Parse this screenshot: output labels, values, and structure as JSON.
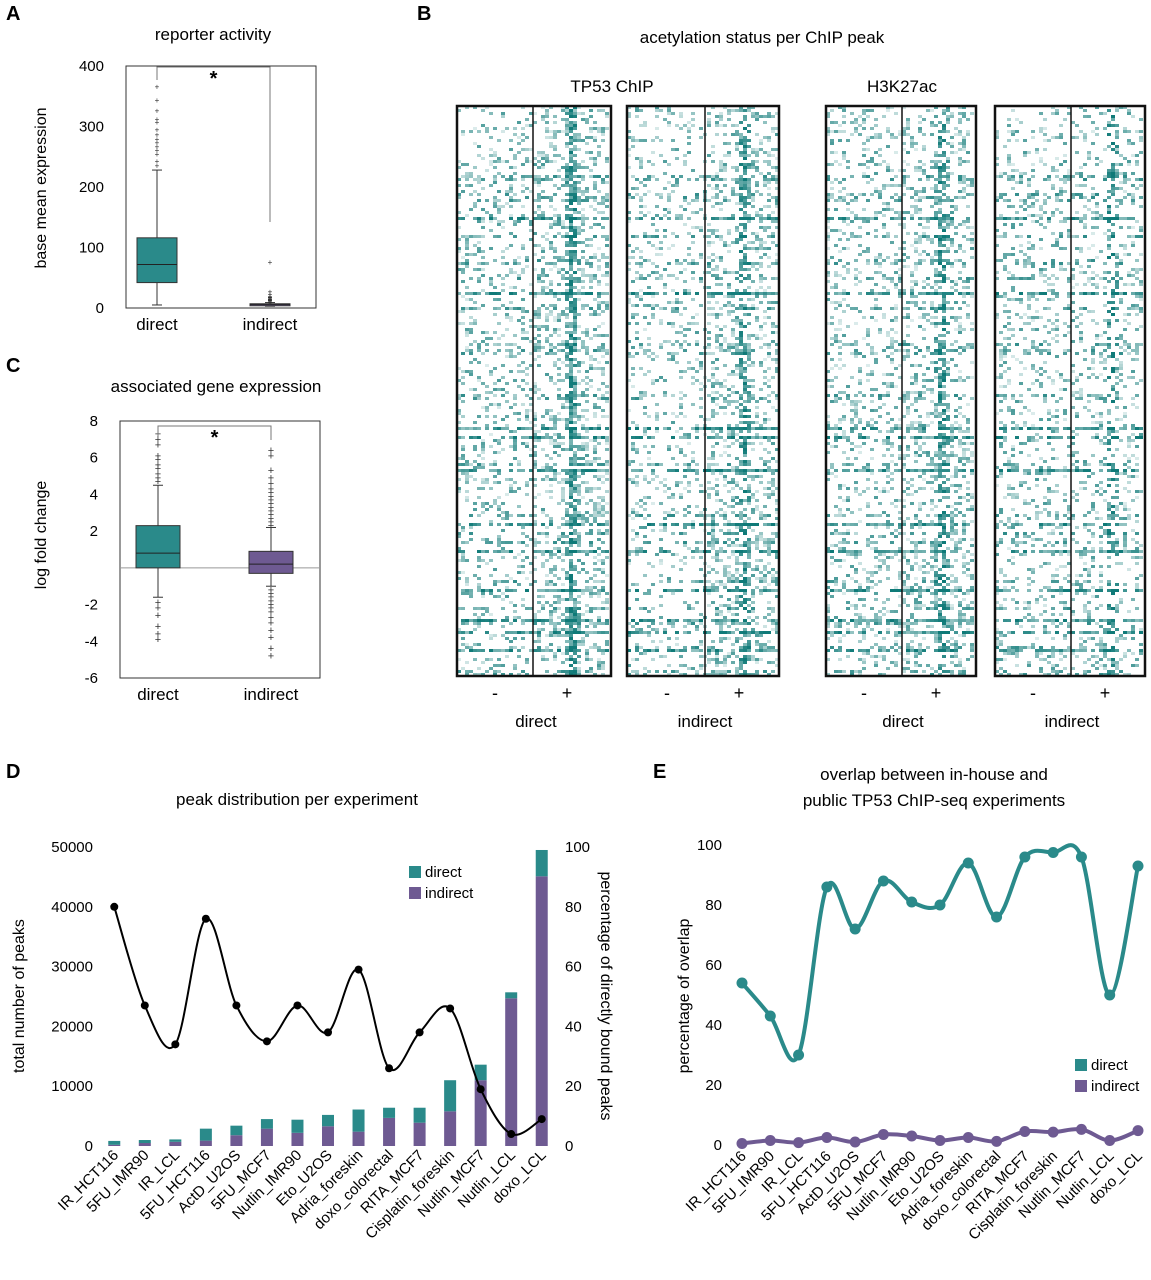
{
  "colors": {
    "direct": "#2a8a8a",
    "indirect": "#6e5a92",
    "heat": "#0f7a78",
    "line": "#000000"
  },
  "panels": {
    "A": {
      "letter": "A",
      "title": "reporter activity",
      "ylabel": "base mean expression",
      "star": "*"
    },
    "B": {
      "letter": "B",
      "title": "acetylation status per ChIP peak",
      "group_tp53": "TP53 ChIP",
      "group_h3k27ac": "H3K27ac",
      "minus": "-",
      "plus": "+",
      "sublabels": [
        "direct",
        "indirect",
        "direct",
        "indirect"
      ]
    },
    "C": {
      "letter": "C",
      "title": "associated gene expression",
      "ylabel": "log fold change",
      "star": "*"
    },
    "D": {
      "letter": "D",
      "title": "peak distribution per experiment",
      "ylabel_left": "total number of peaks",
      "ylabel_right": "percentage of directly bound peaks"
    },
    "E": {
      "letter": "E",
      "title_line1": "overlap between in-house and",
      "title_line2": "public TP53 ChIP-seq experiments",
      "ylabel": "percentage of overlap"
    }
  },
  "chart_data": [
    {
      "panel": "A",
      "type": "box",
      "title": "reporter activity",
      "ylabel": "base mean expression",
      "ylim": [
        0,
        400
      ],
      "yticks": [
        0,
        100,
        200,
        300,
        400
      ],
      "categories": [
        "direct",
        "indirect"
      ],
      "boxes": [
        {
          "name": "direct",
          "whisker_low": 5,
          "q1": 42,
          "median": 72,
          "q3": 116,
          "whisker_high": 228,
          "outliers": [
            236,
            244,
            255,
            262,
            268,
            274,
            280,
            288,
            296,
            308,
            313,
            327,
            345,
            367
          ]
        },
        {
          "name": "indirect",
          "whisker_low": 3,
          "q1": 5,
          "median": 6,
          "q3": 7,
          "whisker_high": 9,
          "outliers": [
            10,
            11,
            12,
            13,
            14,
            15,
            16,
            17,
            18,
            19,
            21,
            24,
            28,
            77
          ]
        }
      ]
    },
    {
      "panel": "C",
      "type": "box",
      "title": "associated gene expression",
      "ylabel": "log fold change",
      "ylim": [
        -6,
        8
      ],
      "yticks": [
        -6,
        -4,
        -2,
        2,
        4,
        6,
        8
      ],
      "categories": [
        "direct",
        "indirect"
      ],
      "boxes": [
        {
          "name": "direct",
          "whisker_low": -1.6,
          "q1": 0.0,
          "median": 0.8,
          "q3": 2.3,
          "whisker_high": 4.5,
          "outliers": [
            -3.9,
            -3.6,
            -3.2,
            -2.6,
            -2.2,
            -1.9,
            4.7,
            4.9,
            5.1,
            5.4,
            5.6,
            5.9,
            6.1,
            6.7,
            7.0,
            7.3
          ]
        },
        {
          "name": "indirect",
          "whisker_low": -1.0,
          "q1": -0.3,
          "median": 0.2,
          "q3": 0.9,
          "whisker_high": 2.2,
          "outliers": [
            -4.8,
            -4.4,
            -3.8,
            -3.4,
            -3.0,
            -2.7,
            -2.4,
            -2.2,
            -2.0,
            -1.8,
            -1.6,
            -1.4,
            -1.2,
            2.3,
            2.5,
            2.7,
            2.9,
            3.1,
            3.3,
            3.5,
            3.7,
            3.9,
            4.1,
            4.3,
            4.6,
            4.9,
            5.3,
            6.1,
            6.4
          ]
        }
      ]
    },
    {
      "panel": "D",
      "type": "bar",
      "title": "peak distribution per experiment",
      "categories": [
        "IR_HCT116",
        "5FU_IMR90",
        "IR_LCL",
        "5FU_HCT116",
        "ActD_U2OS",
        "5FU_MCF7",
        "Nutlin_IMR90",
        "Eto_U2OS",
        "Adria_foreskin",
        "doxo_colorectal",
        "RITA_MCF7",
        "Cisplatin_foreskin",
        "Nutlin_MCF7",
        "Nutlin_LCL",
        "doxo_LCL"
      ],
      "ylim_left": [
        0,
        50000
      ],
      "yticks_left": [
        0,
        10000,
        20000,
        30000,
        40000,
        50000
      ],
      "ylim_right": [
        0,
        100
      ],
      "yticks_right": [
        0,
        20,
        40,
        60,
        80,
        100
      ],
      "series": [
        {
          "name": "direct",
          "values": [
            650,
            500,
            400,
            2000,
            1600,
            1600,
            2200,
            1900,
            3700,
            1700,
            2500,
            5200,
            2600,
            1000,
            4400
          ]
        },
        {
          "name": "indirect",
          "values": [
            200,
            500,
            700,
            900,
            1800,
            2900,
            2200,
            3300,
            2400,
            4700,
            3900,
            5800,
            11000,
            24700,
            45100
          ]
        }
      ],
      "line": {
        "name": "percentage of directly bound peaks",
        "values": [
          80,
          47,
          34,
          76,
          47,
          35,
          47,
          38,
          59,
          26,
          38,
          46,
          19,
          4,
          9
        ]
      },
      "legend": [
        "direct",
        "indirect"
      ],
      "legend_position": "top-right"
    },
    {
      "panel": "E",
      "type": "line",
      "title": "overlap between in-house and public TP53 ChIP-seq experiments",
      "ylabel": "percentage of overlap",
      "ylim": [
        0,
        100
      ],
      "yticks": [
        0,
        20,
        40,
        60,
        80,
        100
      ],
      "categories": [
        "IR_HCT116",
        "5FU_IMR90",
        "IR_LCL",
        "5FU_HCT116",
        "ActD_U2OS",
        "5FU_MCF7",
        "Nutlin_IMR90",
        "Eto_U2OS",
        "Adria_foreskin",
        "doxo_colorectal",
        "RITA_MCF7",
        "Cisplatin_foreskin",
        "Nutlin_MCF7",
        "Nutlin_LCL",
        "doxo_LCL"
      ],
      "series": [
        {
          "name": "direct",
          "values": [
            54,
            43,
            30,
            86,
            72,
            88,
            81,
            80,
            94,
            76,
            96,
            97.5,
            96,
            50,
            93
          ]
        },
        {
          "name": "indirect",
          "values": [
            0.5,
            1.5,
            0.8,
            2.5,
            1.0,
            3.5,
            3.0,
            1.5,
            2.5,
            1.2,
            4.5,
            4.3,
            5.2,
            1.5,
            4.8
          ]
        }
      ],
      "legend": [
        "direct",
        "indirect"
      ],
      "legend_position": "bottom-right"
    },
    {
      "panel": "B",
      "type": "heatmap",
      "title": "acetylation status per ChIP peak",
      "groups": [
        "TP53 ChIP",
        "H3K27ac"
      ],
      "columns": [
        "direct",
        "indirect",
        "direct",
        "indirect"
      ],
      "x_ticks": [
        "-",
        "+"
      ]
    }
  ]
}
